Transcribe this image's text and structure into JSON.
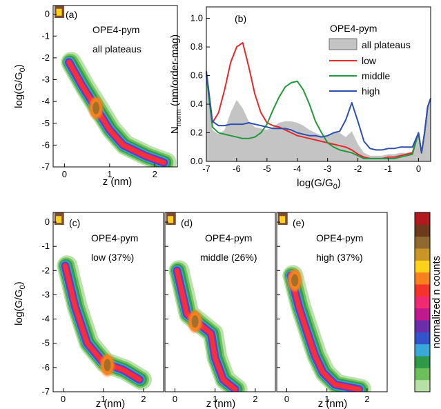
{
  "colors": {
    "low": "#e8262b",
    "middle": "#1f9a3a",
    "high": "#2c4fb2",
    "all_fill": "#c4c4c4",
    "colormap": [
      "#b7e0a6",
      "#6cc05a",
      "#2f9a45",
      "#3aa7d9",
      "#3452c9",
      "#6a2fa8",
      "#c2188f",
      "#f02a72",
      "#f4342a",
      "#f7811f",
      "#ffd21a",
      "#c99526",
      "#8f6a2e",
      "#6e3a1c",
      "#b1191c"
    ]
  },
  "chart_data": [
    {
      "type": "heatmap",
      "panel_label": "(a)",
      "annotation": [
        "OPE4-pym",
        "all plateaus"
      ],
      "xlabel": "z (nm)",
      "ylabel": "log(G/G0)",
      "ylabel_parts": [
        "log(G/G",
        "0",
        ")"
      ],
      "xlim": [
        -0.25,
        2.5
      ],
      "ylim": [
        -7,
        0.4
      ],
      "xticks": [
        0,
        1,
        2
      ],
      "yticks": [
        0,
        -1,
        -2,
        -3,
        -4,
        -5,
        -6,
        -7
      ],
      "ridge": [
        [
          0.1,
          -2.2
        ],
        [
          0.4,
          -3.3
        ],
        [
          0.7,
          -4.3
        ],
        [
          1.0,
          -5.3
        ],
        [
          1.3,
          -6.0
        ],
        [
          1.8,
          -6.5
        ],
        [
          2.2,
          -6.8
        ]
      ],
      "peak": [
        0.7,
        -4.3
      ]
    },
    {
      "type": "line",
      "panel_label": "(b)",
      "xlabel": "log(G/G0)",
      "xlabel_parts": [
        "log(G/G",
        "0",
        ")"
      ],
      "ylabel": "Nnorm (nm/order-mag)",
      "ylabel_parts": [
        "N",
        "norm",
        " (nm/order-mag)"
      ],
      "xlim": [
        -7,
        0.4
      ],
      "ylim": [
        0,
        1.08
      ],
      "xticks": [
        -7,
        -6,
        -5,
        -4,
        -3,
        -2,
        -1,
        0
      ],
      "yticks": [
        0.0,
        0.2,
        0.4,
        0.6,
        0.8,
        1.0
      ],
      "legend_title": "OPE4-pym",
      "legend_position": "top-right",
      "x": [
        -7.0,
        -6.8,
        -6.6,
        -6.4,
        -6.2,
        -6.0,
        -5.8,
        -5.6,
        -5.4,
        -5.2,
        -5.0,
        -4.8,
        -4.6,
        -4.4,
        -4.2,
        -4.0,
        -3.8,
        -3.6,
        -3.4,
        -3.2,
        -3.0,
        -2.8,
        -2.6,
        -2.4,
        -2.2,
        -2.0,
        -1.8,
        -1.6,
        -1.4,
        -1.2,
        -1.0,
        -0.8,
        -0.6,
        -0.4,
        -0.2,
        0.0,
        0.1,
        0.2,
        0.3,
        0.4
      ],
      "series": [
        {
          "name": "all plateaus",
          "style": "area",
          "values": [
            0.55,
            0.22,
            0.19,
            0.22,
            0.34,
            0.43,
            0.37,
            0.28,
            0.24,
            0.23,
            0.22,
            0.24,
            0.27,
            0.28,
            0.28,
            0.27,
            0.25,
            0.22,
            0.2,
            0.18,
            0.18,
            0.2,
            0.2,
            0.17,
            0.21,
            0.12,
            0.06,
            0.04,
            0.04,
            0.04,
            0.05,
            0.05,
            0.06,
            0.06,
            0.07,
            0.2,
            0.06,
            0.2,
            0.38,
            0.44
          ]
        },
        {
          "name": "low",
          "style": "line",
          "values": [
            0.62,
            0.27,
            0.34,
            0.5,
            0.69,
            0.8,
            0.83,
            0.66,
            0.47,
            0.34,
            0.27,
            0.25,
            0.24,
            0.22,
            0.2,
            0.18,
            0.17,
            0.16,
            0.15,
            0.14,
            0.13,
            0.12,
            0.11,
            0.1,
            0.08,
            0.05,
            0.03,
            0.02,
            0.02,
            0.02,
            0.03,
            0.03,
            0.04,
            0.05,
            0.06,
            0.2,
            0.06,
            0.2,
            0.38,
            0.44
          ]
        },
        {
          "name": "middle",
          "style": "line",
          "values": [
            0.6,
            0.24,
            0.2,
            0.19,
            0.18,
            0.17,
            0.16,
            0.16,
            0.17,
            0.2,
            0.26,
            0.36,
            0.45,
            0.52,
            0.55,
            0.56,
            0.5,
            0.4,
            0.28,
            0.2,
            0.13,
            0.1,
            0.08,
            0.07,
            0.06,
            0.04,
            0.02,
            0.02,
            0.02,
            0.02,
            0.02,
            0.02,
            0.03,
            0.04,
            0.05,
            0.2,
            0.06,
            0.2,
            0.38,
            0.44
          ]
        },
        {
          "name": "high",
          "style": "line",
          "values": [
            0.63,
            0.28,
            0.25,
            0.25,
            0.26,
            0.26,
            0.26,
            0.27,
            0.26,
            0.25,
            0.24,
            0.23,
            0.23,
            0.23,
            0.22,
            0.2,
            0.19,
            0.18,
            0.18,
            0.17,
            0.18,
            0.2,
            0.21,
            0.29,
            0.41,
            0.28,
            0.14,
            0.09,
            0.08,
            0.08,
            0.09,
            0.09,
            0.1,
            0.1,
            0.1,
            0.2,
            0.06,
            0.2,
            0.38,
            0.44
          ]
        }
      ]
    },
    {
      "type": "heatmap",
      "panel_label": "(c)",
      "annotation": [
        "OPE4-pym",
        "low (37%)"
      ],
      "xlabel": "z (nm)",
      "ylabel": "log(G/G0)",
      "ylabel_parts": [
        "log(G/G",
        "0",
        ")"
      ],
      "xlim": [
        -0.25,
        2.5
      ],
      "ylim": [
        -7,
        0.4
      ],
      "xticks": [
        0,
        1,
        2
      ],
      "yticks": [
        0,
        -1,
        -2,
        -3,
        -4,
        -5,
        -6,
        -7
      ],
      "ridge": [
        [
          0.05,
          -1.8
        ],
        [
          0.3,
          -3.5
        ],
        [
          0.6,
          -5.0
        ],
        [
          1.0,
          -5.8
        ],
        [
          1.5,
          -6.1
        ],
        [
          1.9,
          -6.5
        ]
      ],
      "peak": [
        1.1,
        -5.9
      ]
    },
    {
      "type": "heatmap",
      "panel_label": "(d)",
      "annotation": [
        "OPE4-pym",
        "middle (26%)"
      ],
      "xlabel": "z (nm)",
      "xlim": [
        -0.25,
        2.5
      ],
      "ylim": [
        -7,
        0.4
      ],
      "xticks": [
        0,
        1,
        2
      ],
      "ridge": [
        [
          0.05,
          -2.0
        ],
        [
          0.3,
          -3.8
        ],
        [
          0.6,
          -4.2
        ],
        [
          0.9,
          -4.6
        ],
        [
          1.0,
          -5.6
        ],
        [
          1.2,
          -6.5
        ],
        [
          1.5,
          -6.9
        ]
      ],
      "peak": [
        0.5,
        -4.1
      ]
    },
    {
      "type": "heatmap",
      "panel_label": "(e)",
      "annotation": [
        "OPE4-pym",
        "high (37%)"
      ],
      "xlabel": "z (nm)",
      "xlim": [
        -0.25,
        2.5
      ],
      "ylim": [
        -7,
        0.4
      ],
      "xticks": [
        0,
        1,
        2
      ],
      "ridge": [
        [
          0.1,
          -2.2
        ],
        [
          0.3,
          -3.5
        ],
        [
          0.5,
          -4.5
        ],
        [
          0.7,
          -5.5
        ],
        [
          0.9,
          -6.2
        ],
        [
          1.2,
          -6.7
        ],
        [
          1.8,
          -6.9
        ]
      ],
      "peak": [
        0.2,
        -2.4
      ]
    }
  ],
  "colorbar": {
    "label": "normalized n counts"
  }
}
